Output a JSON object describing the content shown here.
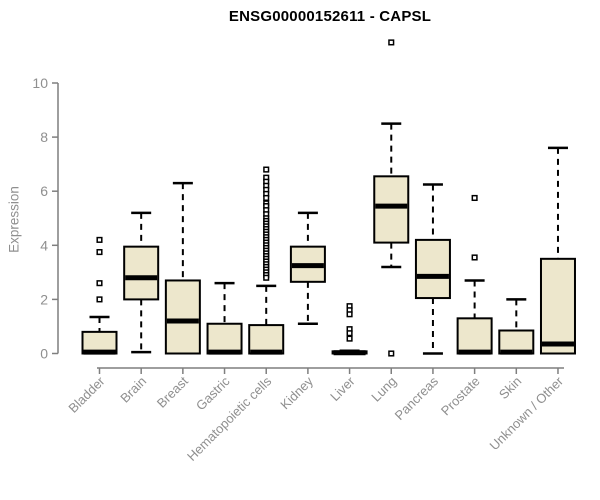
{
  "page": {
    "title": "ENSG00000152611 - CAPSL"
  },
  "chart_data": {
    "type": "boxplot",
    "title": "ENSG00000152611 - CAPSL",
    "xlabel": "",
    "ylabel": "Expression",
    "ylim": [
      0,
      10
    ],
    "yticks": [
      0,
      2,
      4,
      6,
      8,
      10
    ],
    "grid": false,
    "legend": "none",
    "categories": [
      "Bladder",
      "Brain",
      "Breast",
      "Gastric",
      "Hematopoietic cells",
      "Kidney",
      "Liver",
      "Lung",
      "Pancreas",
      "Prostate",
      "Skin",
      "Unknown / Other"
    ],
    "series": [
      {
        "name": "Bladder",
        "low": 0,
        "q1": 0,
        "median": 0.05,
        "q3": 0.8,
        "high": 1.35,
        "outliers": [
          4.2,
          3.75,
          2.6,
          2.0
        ]
      },
      {
        "name": "Brain",
        "low": 0.05,
        "q1": 2.0,
        "median": 2.8,
        "q3": 3.95,
        "high": 5.2,
        "outliers": []
      },
      {
        "name": "Breast",
        "low": 0,
        "q1": 0,
        "median": 1.2,
        "q3": 2.7,
        "high": 6.3,
        "outliers": []
      },
      {
        "name": "Gastric",
        "low": 0,
        "q1": 0,
        "median": 0.05,
        "q3": 1.1,
        "high": 2.6,
        "outliers": []
      },
      {
        "name": "Hematopoietic cells",
        "low": 0,
        "q1": 0,
        "median": 0.05,
        "q3": 1.05,
        "high": 2.5,
        "outliers": [
          6.8,
          6.5,
          6.35,
          6.2,
          6.05,
          5.9,
          5.75,
          5.55,
          5.45,
          5.3,
          5.15,
          5.0,
          4.9,
          4.8,
          4.7,
          4.6,
          4.5,
          4.4,
          4.3,
          4.2,
          4.1,
          4.0,
          3.9,
          3.8,
          3.7,
          3.6,
          3.5,
          3.4,
          3.3,
          3.2,
          3.1,
          3.0,
          2.9,
          2.8
        ]
      },
      {
        "name": "Kidney",
        "low": 1.1,
        "q1": 2.65,
        "median": 3.25,
        "q3": 3.95,
        "high": 5.2,
        "outliers": []
      },
      {
        "name": "Liver",
        "low": 0,
        "q1": 0,
        "median": 0.03,
        "q3": 0.08,
        "high": 0.1,
        "outliers": [
          1.75,
          1.6,
          1.45,
          0.9,
          0.75,
          0.55
        ]
      },
      {
        "name": "Lung",
        "low": 3.2,
        "q1": 4.1,
        "median": 5.45,
        "q3": 6.55,
        "high": 8.5,
        "outliers": [
          11.5,
          0.0
        ]
      },
      {
        "name": "Pancreas",
        "low": 0,
        "q1": 2.05,
        "median": 2.85,
        "q3": 4.2,
        "high": 6.25,
        "outliers": []
      },
      {
        "name": "Prostate",
        "low": 0,
        "q1": 0,
        "median": 0.05,
        "q3": 1.3,
        "high": 2.7,
        "outliers": [
          5.75,
          3.55
        ]
      },
      {
        "name": "Skin",
        "low": 0,
        "q1": 0,
        "median": 0.05,
        "q3": 0.85,
        "high": 2.0,
        "outliers": []
      },
      {
        "name": "Unknown / Other",
        "low": 0,
        "q1": 0,
        "median": 0.35,
        "q3": 3.5,
        "high": 7.6,
        "outliers": []
      }
    ],
    "colors": {
      "background": "#FFFFFF",
      "box_fill": "#EDE7CC",
      "box_border": "#000000",
      "median": "#000000",
      "whisker": "#000000",
      "outlier": "#000000",
      "axis": "#7F7F7F",
      "tick_label": "#8F8F8F",
      "title": "#000000"
    }
  }
}
